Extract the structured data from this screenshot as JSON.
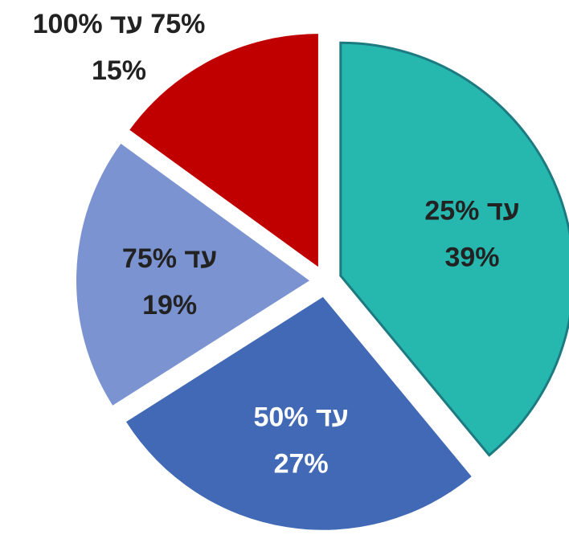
{
  "chart_data": {
    "type": "pie",
    "categories": [
      "עד 25%",
      "עד 50%",
      "עד 75%",
      "75% עד 100%"
    ],
    "values": [
      39,
      27,
      19,
      15
    ],
    "value_labels": [
      "39%",
      "27%",
      "19%",
      "15%"
    ],
    "colors": [
      "#26b8ae",
      "#4169b5",
      "#7b93d0",
      "#c00000"
    ],
    "label_colors": [
      "#222222",
      "#ffffff",
      "#222222",
      "#222222"
    ],
    "exploded": true
  }
}
